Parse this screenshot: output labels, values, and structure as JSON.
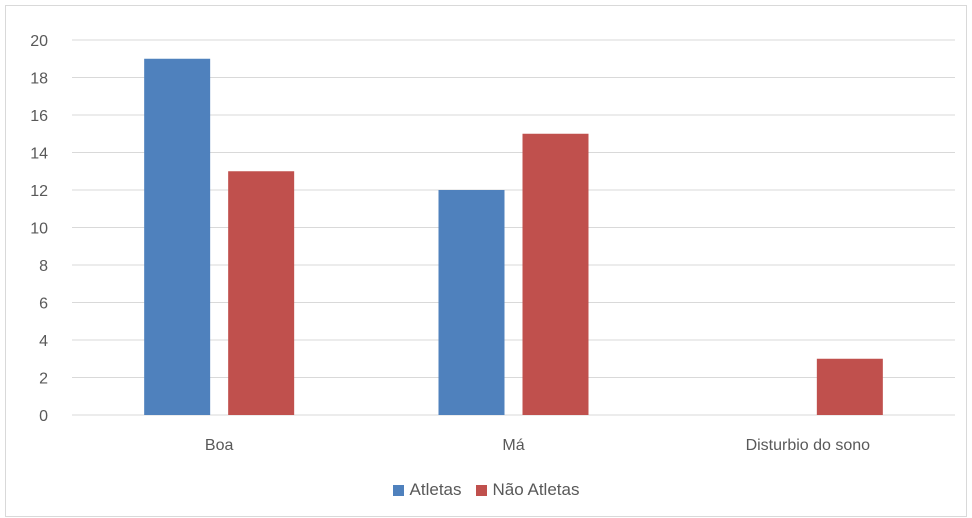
{
  "chart_data": {
    "type": "bar",
    "categories": [
      "Boa",
      "Má",
      "Disturbio do sono"
    ],
    "series": [
      {
        "name": "Atletas",
        "values": [
          19,
          12,
          0
        ],
        "color": "#4F81BD"
      },
      {
        "name": "Não Atletas",
        "values": [
          13,
          15,
          3
        ],
        "color": "#C0504D"
      }
    ],
    "yticks": [
      "0",
      "2",
      "4",
      "6",
      "8",
      "10",
      "12",
      "14",
      "16",
      "18",
      "20"
    ],
    "ylim": [
      0,
      20
    ],
    "grid": true,
    "legend_position": "bottom"
  }
}
